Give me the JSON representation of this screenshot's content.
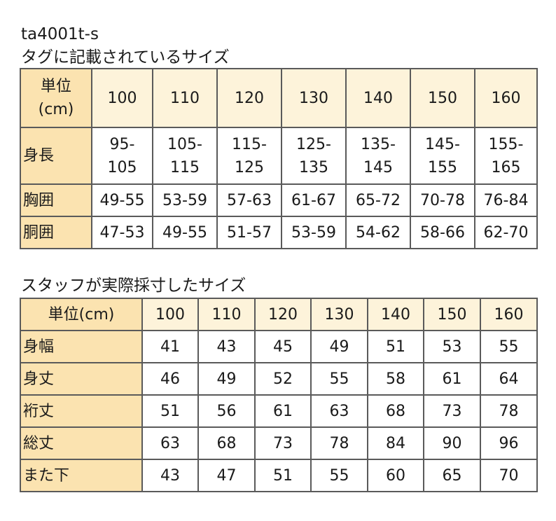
{
  "product_code": "ta4001t-s",
  "tag_section": {
    "title": "タグに記載されているサイズ",
    "corner_line1": "単位",
    "corner_line2": "(cm)",
    "sizes": [
      "100",
      "110",
      "120",
      "130",
      "140",
      "150",
      "160"
    ],
    "rows": [
      {
        "label": "身長",
        "cells": [
          [
            "95-",
            "105"
          ],
          [
            "105-",
            "115"
          ],
          [
            "115-",
            "125"
          ],
          [
            "125-",
            "135"
          ],
          [
            "135-",
            "145"
          ],
          [
            "145-",
            "155"
          ],
          [
            "155-",
            "165"
          ]
        ]
      },
      {
        "label": "胸囲",
        "cells": [
          [
            "49-55"
          ],
          [
            "53-59"
          ],
          [
            "57-63"
          ],
          [
            "61-67"
          ],
          [
            "65-72"
          ],
          [
            "70-78"
          ],
          [
            "76-84"
          ]
        ]
      },
      {
        "label": "胴囲",
        "cells": [
          [
            "47-53"
          ],
          [
            "49-55"
          ],
          [
            "51-57"
          ],
          [
            "53-59"
          ],
          [
            "54-62"
          ],
          [
            "58-66"
          ],
          [
            "62-70"
          ]
        ]
      }
    ]
  },
  "staff_section": {
    "title": "スタッフが実際採寸したサイズ",
    "corner": "単位(cm)",
    "sizes": [
      "100",
      "110",
      "120",
      "130",
      "140",
      "150",
      "160"
    ],
    "rows": [
      {
        "label": "身幅",
        "values": [
          "41",
          "43",
          "45",
          "49",
          "51",
          "53",
          "55"
        ]
      },
      {
        "label": "身丈",
        "values": [
          "46",
          "49",
          "52",
          "55",
          "58",
          "61",
          "64"
        ]
      },
      {
        "label": "裄丈",
        "values": [
          "51",
          "56",
          "61",
          "63",
          "68",
          "73",
          "78"
        ]
      },
      {
        "label": "総丈",
        "values": [
          "63",
          "68",
          "73",
          "78",
          "84",
          "90",
          "96"
        ]
      },
      {
        "label": "また下",
        "values": [
          "43",
          "47",
          "51",
          "55",
          "60",
          "65",
          "70"
        ]
      }
    ]
  }
}
